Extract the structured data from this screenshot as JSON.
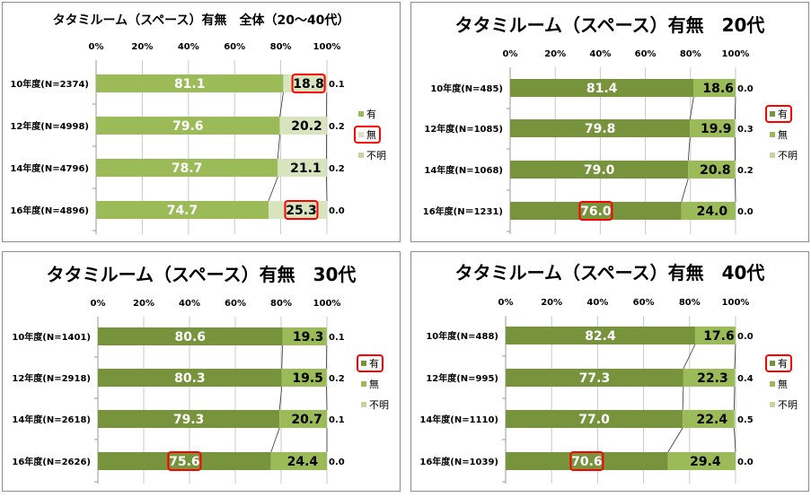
{
  "chart_data": [
    {
      "type": "bar",
      "stacked": true,
      "orientation": "horizontal",
      "title": "タタミルーム（スペース）有無　全体（20～40代）",
      "categories": [
        "10年度(N=2374)",
        "12年度(N=4998)",
        "14年度(N=4796)",
        "16年度(N=4896)"
      ],
      "series": [
        {
          "name": "有",
          "values": [
            81.1,
            79.6,
            78.7,
            74.7
          ],
          "color": "#9bbb59"
        },
        {
          "name": "無",
          "values": [
            18.8,
            20.2,
            21.1,
            25.3
          ],
          "color": "#d7e4bd"
        },
        {
          "name": "不明",
          "values": [
            0.1,
            0.2,
            0.2,
            0.0
          ],
          "color": "#c3d69b"
        }
      ],
      "x_ticks": [
        "0%",
        "20%",
        "40%",
        "60%",
        "80%",
        "100%"
      ],
      "xlim": [
        0,
        100
      ],
      "legend": "right",
      "grid": true,
      "highlighted_labels": [
        {
          "series": "無",
          "category_index": 0
        },
        {
          "series": "無",
          "category_index": 3
        }
      ],
      "highlighted_legend": "無"
    },
    {
      "type": "bar",
      "stacked": true,
      "orientation": "horizontal",
      "title": "タタミルーム（スペース）有無　20代",
      "categories": [
        "10年度(N=485)",
        "12年度(N=1085)",
        "14年度(N=1068)",
        "16年度(N＝1231)"
      ],
      "series": [
        {
          "name": "有",
          "values": [
            81.4,
            79.8,
            79.0,
            76.0
          ],
          "color": "#77933c"
        },
        {
          "name": "無",
          "values": [
            18.6,
            19.9,
            20.8,
            24.0
          ],
          "color": "#9bbb59"
        },
        {
          "name": "不明",
          "values": [
            0.0,
            0.3,
            0.2,
            0.0
          ],
          "color": "#c3d69b"
        }
      ],
      "x_ticks": [
        "0%",
        "20%",
        "40%",
        "60%",
        "80%",
        "100%"
      ],
      "xlim": [
        0,
        100
      ],
      "legend": "right",
      "grid": true,
      "highlighted_labels": [
        {
          "series": "有",
          "category_index": 3
        }
      ],
      "highlighted_legend": "有"
    },
    {
      "type": "bar",
      "stacked": true,
      "orientation": "horizontal",
      "title": "タタミルーム（スペース）有無　30代",
      "categories": [
        "10年度(N=1401)",
        "12年度(N=2918)",
        "14年度(N=2618)",
        "16年度(N=2626)"
      ],
      "series": [
        {
          "name": "有",
          "values": [
            80.6,
            80.3,
            79.3,
            75.6
          ],
          "color": "#77933c"
        },
        {
          "name": "無",
          "values": [
            19.3,
            19.5,
            20.7,
            24.4
          ],
          "color": "#9bbb59"
        },
        {
          "name": "不明",
          "values": [
            0.1,
            0.2,
            0.1,
            0.0
          ],
          "color": "#c3d69b"
        }
      ],
      "x_ticks": [
        "0%",
        "20%",
        "40%",
        "60%",
        "80%",
        "100%"
      ],
      "xlim": [
        0,
        100
      ],
      "legend": "right",
      "grid": true,
      "highlighted_labels": [
        {
          "series": "有",
          "category_index": 3
        }
      ],
      "highlighted_legend": "有"
    },
    {
      "type": "bar",
      "stacked": true,
      "orientation": "horizontal",
      "title": "タタミルーム（スペース）有無　40代",
      "categories": [
        "10年度(N=488)",
        "12年度(N=995)",
        "14年度(N=1110)",
        "16年度(N=1039)"
      ],
      "series": [
        {
          "name": "有",
          "values": [
            82.4,
            77.3,
            77.0,
            70.6
          ],
          "color": "#77933c"
        },
        {
          "name": "無",
          "values": [
            17.6,
            22.3,
            22.4,
            29.4
          ],
          "color": "#9bbb59"
        },
        {
          "name": "不明",
          "values": [
            0.0,
            0.4,
            0.5,
            0.0
          ],
          "color": "#c3d69b"
        }
      ],
      "x_ticks": [
        "0%",
        "20%",
        "40%",
        "60%",
        "80%",
        "100%"
      ],
      "xlim": [
        0,
        100
      ],
      "legend": "right",
      "grid": true,
      "highlighted_labels": [
        {
          "series": "有",
          "category_index": 3
        }
      ],
      "highlighted_legend": "有"
    }
  ]
}
